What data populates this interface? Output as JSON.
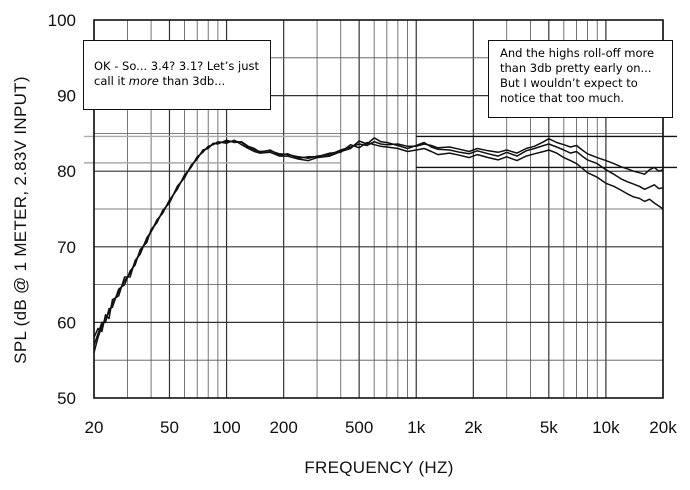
{
  "chart_data": {
    "type": "line",
    "title": "",
    "xlabel": "FREQUENCY  (HZ)",
    "ylabel": "SPL (dB @ 1 METER, 2.83V INPUT)",
    "xscale": "log",
    "xlim": [
      20,
      20000
    ],
    "ylim": [
      50,
      100
    ],
    "grid": true,
    "x_ticks": [
      20,
      50,
      100,
      200,
      500,
      1000,
      2000,
      5000,
      10000,
      20000
    ],
    "x_tick_labels": [
      "20",
      "50",
      "100",
      "200",
      "500",
      "1k",
      "2k",
      "5k",
      "10k",
      "20k"
    ],
    "y_ticks": [
      50,
      60,
      70,
      80,
      90,
      100
    ],
    "y_tick_labels": [
      "50",
      "60",
      "70",
      "80",
      "90",
      "100"
    ],
    "reference_lines": [
      {
        "y": 84.6,
        "x": [
          20,
          400
        ],
        "color": "#aaaaaa"
      },
      {
        "y": 81.1,
        "x": [
          20,
          400
        ],
        "color": "#aaaaaa"
      },
      {
        "y": 84.6,
        "x": [
          1000,
          20000
        ],
        "color": "#111111"
      },
      {
        "y": 80.5,
        "x": [
          1000,
          20000
        ],
        "color": "#111111"
      }
    ],
    "series": [
      {
        "x": [
          20,
          21,
          22,
          23,
          24,
          25,
          27,
          29,
          31,
          33,
          35,
          38,
          40,
          43,
          46,
          50,
          55,
          60,
          65,
          70,
          75,
          80,
          85,
          90,
          100,
          110,
          120,
          130,
          140,
          150,
          170,
          190,
          210,
          240,
          270,
          300,
          350,
          400,
          450,
          500,
          550,
          600,
          650,
          700,
          800,
          900,
          1000,
          1100,
          1200,
          1300,
          1500,
          1700,
          1900,
          2100,
          2400,
          2700,
          3000,
          3400,
          3800,
          4200,
          4700,
          5000,
          5500,
          6000,
          6500,
          7000,
          7500,
          8000,
          9000,
          10000,
          11000,
          12000,
          13000,
          14000,
          15000,
          16000,
          17000,
          18000,
          19000,
          20000
        ],
        "values": [
          56.0,
          58.0,
          59.5,
          60.5,
          61.3,
          62.5,
          64.0,
          65.5,
          66.5,
          68.0,
          69.3,
          71.0,
          72.0,
          73.4,
          74.6,
          76.0,
          77.8,
          79.3,
          80.6,
          81.8,
          82.6,
          83.2,
          83.6,
          83.8,
          83.9,
          84.0,
          83.8,
          83.2,
          82.8,
          82.6,
          82.7,
          82.3,
          82.2,
          81.9,
          81.7,
          82.0,
          82.2,
          82.8,
          83.2,
          83.6,
          83.4,
          83.9,
          83.6,
          83.5,
          83.6,
          83.3,
          83.3,
          83.6,
          83.4,
          83.1,
          83.2,
          82.9,
          82.6,
          83.0,
          82.7,
          82.5,
          82.8,
          82.4,
          83.0,
          83.3,
          83.9,
          84.3,
          83.8,
          83.5,
          83.2,
          83.4,
          82.8,
          82.3,
          81.8,
          81.4,
          81.0,
          80.6,
          80.3,
          80.0,
          79.8,
          79.6,
          80.2,
          80.5,
          80.0,
          80.2
        ]
      },
      {
        "x": [
          20,
          21,
          22,
          23,
          24,
          25,
          27,
          29,
          31,
          33,
          35,
          38,
          40,
          43,
          46,
          50,
          55,
          60,
          65,
          70,
          75,
          80,
          85,
          90,
          100,
          110,
          120,
          130,
          140,
          150,
          170,
          190,
          210,
          240,
          270,
          300,
          350,
          400,
          450,
          500,
          550,
          600,
          650,
          700,
          800,
          900,
          1000,
          1100,
          1200,
          1300,
          1500,
          1700,
          1900,
          2100,
          2400,
          2700,
          3000,
          3400,
          3800,
          4200,
          4700,
          5000,
          5500,
          6000,
          6500,
          7000,
          7500,
          8000,
          9000,
          10000,
          11000,
          12000,
          13000,
          14000,
          15000,
          16000,
          17000,
          18000,
          19000,
          20000
        ],
        "values": [
          58.0,
          59.2,
          58.8,
          61.0,
          60.5,
          63.0,
          63.5,
          66.0,
          66.0,
          68.2,
          69.0,
          71.2,
          72.0,
          73.6,
          74.4,
          76.2,
          77.6,
          79.5,
          80.5,
          81.9,
          82.5,
          83.3,
          83.5,
          83.9,
          83.7,
          84.1,
          83.5,
          83.0,
          82.6,
          82.4,
          82.5,
          82.0,
          82.0,
          81.6,
          81.4,
          81.8,
          82.0,
          82.6,
          83.0,
          84.0,
          83.6,
          84.4,
          83.9,
          83.8,
          83.4,
          83.0,
          83.4,
          83.8,
          83.2,
          82.9,
          82.8,
          82.5,
          82.3,
          82.7,
          82.3,
          82.0,
          82.5,
          82.0,
          82.7,
          83.0,
          83.4,
          83.6,
          83.2,
          82.8,
          82.4,
          82.6,
          82.0,
          81.5,
          81.0,
          80.2,
          79.6,
          79.0,
          78.6,
          78.3,
          78.0,
          77.6,
          77.9,
          78.2,
          77.7,
          77.8
        ]
      },
      {
        "x": [
          20,
          21,
          22,
          23,
          24,
          25,
          27,
          29,
          31,
          33,
          35,
          38,
          40,
          43,
          46,
          50,
          55,
          60,
          65,
          70,
          75,
          80,
          85,
          90,
          100,
          110,
          120,
          130,
          140,
          150,
          170,
          190,
          210,
          240,
          270,
          300,
          350,
          400,
          450,
          500,
          550,
          600,
          650,
          700,
          800,
          900,
          1000,
          1100,
          1200,
          1300,
          1500,
          1700,
          1900,
          2100,
          2400,
          2700,
          3000,
          3400,
          3800,
          4200,
          4700,
          5000,
          5500,
          6000,
          6500,
          7000,
          7500,
          8000,
          9000,
          10000,
          11000,
          12000,
          13000,
          14000,
          15000,
          16000,
          17000,
          18000,
          19000,
          20000
        ],
        "values": [
          57.0,
          58.5,
          60.0,
          60.0,
          61.8,
          62.0,
          64.4,
          65.0,
          66.8,
          67.6,
          69.6,
          70.6,
          72.3,
          73.2,
          74.8,
          75.8,
          78.0,
          79.1,
          80.8,
          81.6,
          82.8,
          83.0,
          83.7,
          83.6,
          84.1,
          83.8,
          83.9,
          83.3,
          83.0,
          82.5,
          82.8,
          82.1,
          82.3,
          81.7,
          81.9,
          81.9,
          82.4,
          82.5,
          83.5,
          83.1,
          83.8,
          83.5,
          83.3,
          83.2,
          83.0,
          82.6,
          82.8,
          83.0,
          82.6,
          82.2,
          82.4,
          82.1,
          81.8,
          82.2,
          81.8,
          81.5,
          81.9,
          81.4,
          82.0,
          82.3,
          82.6,
          82.8,
          82.4,
          81.8,
          81.4,
          81.0,
          80.4,
          79.8,
          79.2,
          78.4,
          78.0,
          77.5,
          77.0,
          76.6,
          76.4,
          76.0,
          76.3,
          75.8,
          75.4,
          75.0
        ]
      }
    ]
  },
  "annotations": {
    "left_line1": "OK - So... 3.4? 3.1?  Let’s just",
    "left_line2_pre": "call it ",
    "left_line2_em": "more",
    "left_line2_post": " than 3db...",
    "right_line1": "And the highs roll-off more",
    "right_line2": "than 3db pretty early on...",
    "right_line3": "But I wouldn’t expect to",
    "right_line4": "notice that too much."
  }
}
